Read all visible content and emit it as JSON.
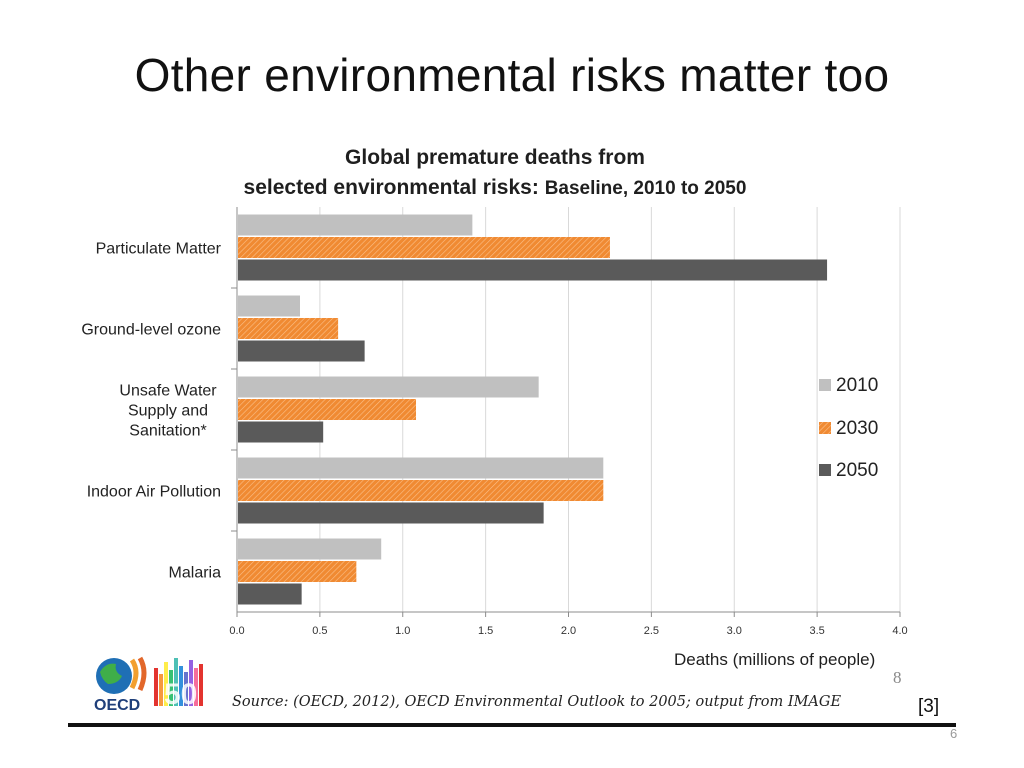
{
  "slide": {
    "title": "Other environmental risks matter too",
    "reference": "[3]",
    "slide_number": "6"
  },
  "chart_header": {
    "line1": "Global premature deaths from",
    "line2_main": "selected environmental risks:",
    "line2_sub": "Baseline, 2010 to 2050"
  },
  "footer": {
    "source": "Source: (OECD, 2012), OECD Environmental Outlook to 2005; output from IMAGE",
    "page_mark": "8",
    "logo_text": "OECD",
    "logo_number": "50"
  },
  "colors": {
    "2010": "#c0c0c0",
    "2030": "#f08a32",
    "2050": "#5a5a5a",
    "grid": "#d9d9d9"
  },
  "chart_data": {
    "type": "bar",
    "orientation": "horizontal",
    "title": "Global premature deaths from selected environmental risks: Baseline, 2010 to 2050",
    "xlabel": "Deaths (millions of people)",
    "ylabel": "",
    "xlim": [
      0,
      4.0
    ],
    "xticks": [
      "0.0",
      "0.5",
      "1.0",
      "1.5",
      "2.0",
      "2.5",
      "3.0",
      "3.5",
      "4.0"
    ],
    "categories": [
      [
        "Particulate Matter"
      ],
      [
        "Ground-level ozone"
      ],
      [
        "Unsafe Water",
        "Supply and",
        "Sanitation*"
      ],
      [
        "Indoor Air Pollution"
      ],
      [
        "Malaria"
      ]
    ],
    "series": [
      {
        "name": "2010",
        "values": [
          1.42,
          0.38,
          1.82,
          2.21,
          0.87
        ]
      },
      {
        "name": "2030",
        "values": [
          2.25,
          0.61,
          1.08,
          2.21,
          0.72
        ]
      },
      {
        "name": "2050",
        "values": [
          3.56,
          0.77,
          0.52,
          1.85,
          0.39
        ]
      }
    ],
    "legend": [
      "2010",
      "2030",
      "2050"
    ],
    "legend_position": "right",
    "grid": true
  }
}
